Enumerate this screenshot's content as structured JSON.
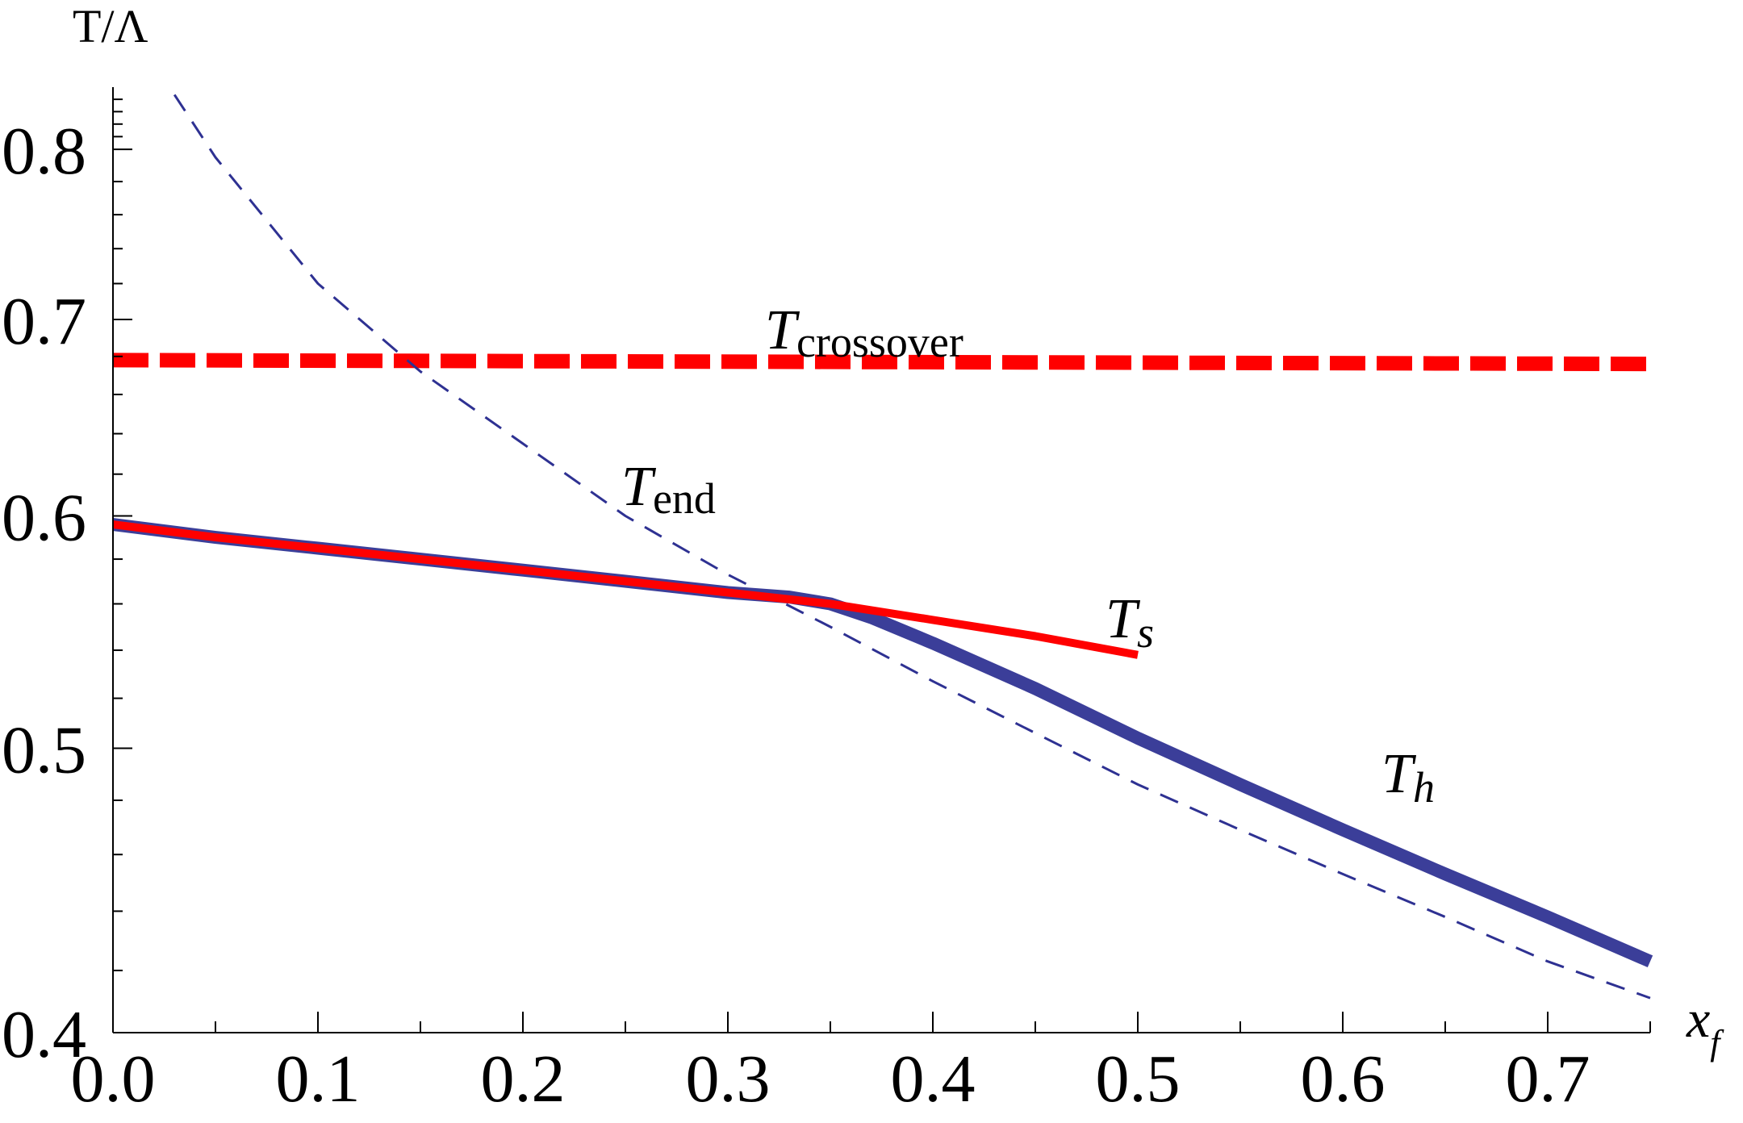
{
  "chart_data": {
    "type": "line",
    "title": "",
    "xlabel": "x",
    "xlabel_sub": "f",
    "ylabel": "T/Λ",
    "xlim": [
      0.0,
      0.75
    ],
    "ylim": [
      0.4,
      0.84
    ],
    "y_scale": "log",
    "grid": false,
    "legend": "none",
    "x_ticks": [
      {
        "value": 0.0,
        "label": "0.0"
      },
      {
        "value": 0.1,
        "label": "0.1"
      },
      {
        "value": 0.2,
        "label": "0.2"
      },
      {
        "value": 0.3,
        "label": "0.3"
      },
      {
        "value": 0.4,
        "label": "0.4"
      },
      {
        "value": 0.5,
        "label": "0.5"
      },
      {
        "value": 0.6,
        "label": "0.6"
      },
      {
        "value": 0.7,
        "label": "0.7"
      }
    ],
    "y_ticks": [
      {
        "value": 0.4,
        "label": "0.4"
      },
      {
        "value": 0.5,
        "label": "0.5"
      },
      {
        "value": 0.6,
        "label": "0.6"
      },
      {
        "value": 0.7,
        "label": "0.7"
      },
      {
        "value": 0.8,
        "label": "0.8"
      }
    ],
    "series": [
      {
        "key": "crossover",
        "label_main": "T",
        "label_sub": "crossover",
        "color": "#ff0000",
        "style": "thick-dashed",
        "x": [
          0.0,
          0.75
        ],
        "y": [
          0.678,
          0.676
        ]
      },
      {
        "key": "end",
        "label_main": "T",
        "label_sub": "end",
        "color": "#2e3192",
        "style": "thin-dashed",
        "x": [
          0.03,
          0.05,
          0.1,
          0.15,
          0.2,
          0.25,
          0.3,
          0.35,
          0.4,
          0.45,
          0.5,
          0.55,
          0.6,
          0.65,
          0.7,
          0.75
        ],
        "y": [
          0.835,
          0.795,
          0.72,
          0.672,
          0.635,
          0.6,
          0.573,
          0.55,
          0.527,
          0.506,
          0.486,
          0.469,
          0.453,
          0.438,
          0.423,
          0.411
        ]
      },
      {
        "key": "h",
        "label_main": "T",
        "label_sub": "h",
        "color": "#3b3e99",
        "style": "thick-solid",
        "x": [
          0.0,
          0.05,
          0.1,
          0.15,
          0.2,
          0.25,
          0.3,
          0.33,
          0.35,
          0.37,
          0.4,
          0.45,
          0.5,
          0.55,
          0.6,
          0.65,
          0.7,
          0.75
        ],
        "y": [
          0.596,
          0.59,
          0.585,
          0.58,
          0.575,
          0.57,
          0.565,
          0.563,
          0.56,
          0.554,
          0.543,
          0.524,
          0.504,
          0.486,
          0.469,
          0.453,
          0.438,
          0.423
        ]
      },
      {
        "key": "s",
        "label_main": "T",
        "label_sub": "s",
        "color": "#ff0000",
        "style": "solid",
        "x": [
          0.0,
          0.05,
          0.1,
          0.15,
          0.2,
          0.25,
          0.3,
          0.33,
          0.35,
          0.4,
          0.45,
          0.5
        ],
        "y": [
          0.596,
          0.59,
          0.585,
          0.58,
          0.575,
          0.57,
          0.565,
          0.562,
          0.56,
          0.553,
          0.546,
          0.538
        ]
      }
    ]
  }
}
